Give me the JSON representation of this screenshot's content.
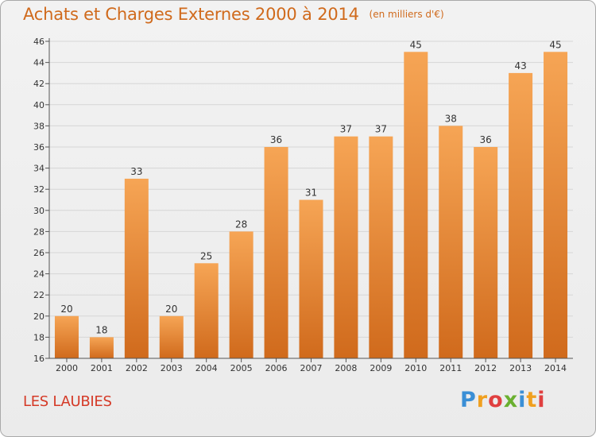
{
  "header": {
    "title": "Achats et Charges Externes 2000 à 2014",
    "unit": "(en milliers d'€)"
  },
  "footer": {
    "place": "LES LAUBIES",
    "logo_letters": [
      "P",
      "r",
      "o",
      "x",
      "i",
      "t",
      "i"
    ],
    "logo_colors": [
      "#3a8fd6",
      "#f0a020",
      "#e04040",
      "#6ab030",
      "#3a8fd6",
      "#f0a020",
      "#e04040"
    ]
  },
  "colors": {
    "bar_top": "#f6a555",
    "bar_bottom": "#d06a1c",
    "grid": "#d6d6d6",
    "axis": "#555555",
    "text": "#333333"
  },
  "chart_data": {
    "type": "bar",
    "categories": [
      "2000",
      "2001",
      "2002",
      "2003",
      "2004",
      "2005",
      "2006",
      "2007",
      "2008",
      "2009",
      "2010",
      "2011",
      "2012",
      "2013",
      "2014"
    ],
    "values": [
      20,
      18,
      33,
      20,
      25,
      28,
      36,
      31,
      37,
      37,
      45,
      38,
      36,
      43,
      45
    ],
    "value_labels": [
      "20",
      "18",
      "33",
      "20",
      "25",
      "28",
      "36",
      "31",
      "37",
      "37",
      "45",
      "38",
      "36",
      "43",
      "45"
    ],
    "title": "Achats et Charges Externes 2000 à 2014",
    "xlabel": "",
    "ylabel": "",
    "ylim": [
      16,
      46
    ],
    "yticks": [
      "16",
      "18",
      "20",
      "22",
      "24",
      "26",
      "28",
      "30",
      "32",
      "34",
      "36",
      "38",
      "40",
      "42",
      "44",
      "46"
    ],
    "grid": true
  }
}
